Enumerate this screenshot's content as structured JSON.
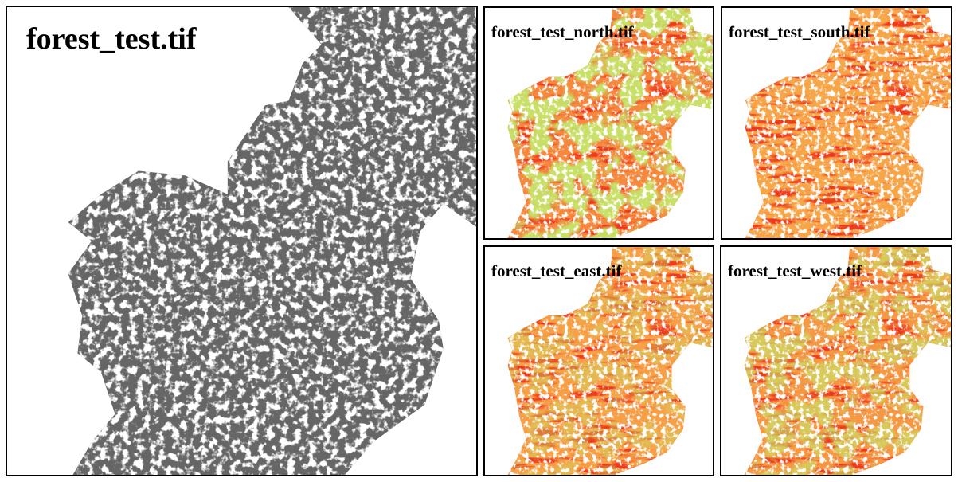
{
  "panels": {
    "main": {
      "title": "forest_test.tif"
    },
    "north": {
      "title": "forest_test_north.tif"
    },
    "south": {
      "title": "forest_test_south.tif"
    },
    "east": {
      "title": "forest_test_east.tif"
    },
    "west": {
      "title": "forest_test_west.tif"
    }
  },
  "colors": {
    "forest_gray": "#666666",
    "slope_red": "#ee3a1c",
    "slope_orange": "#f08a1e",
    "slope_green": "#8fd12a",
    "gap_white": "#ffffff"
  }
}
